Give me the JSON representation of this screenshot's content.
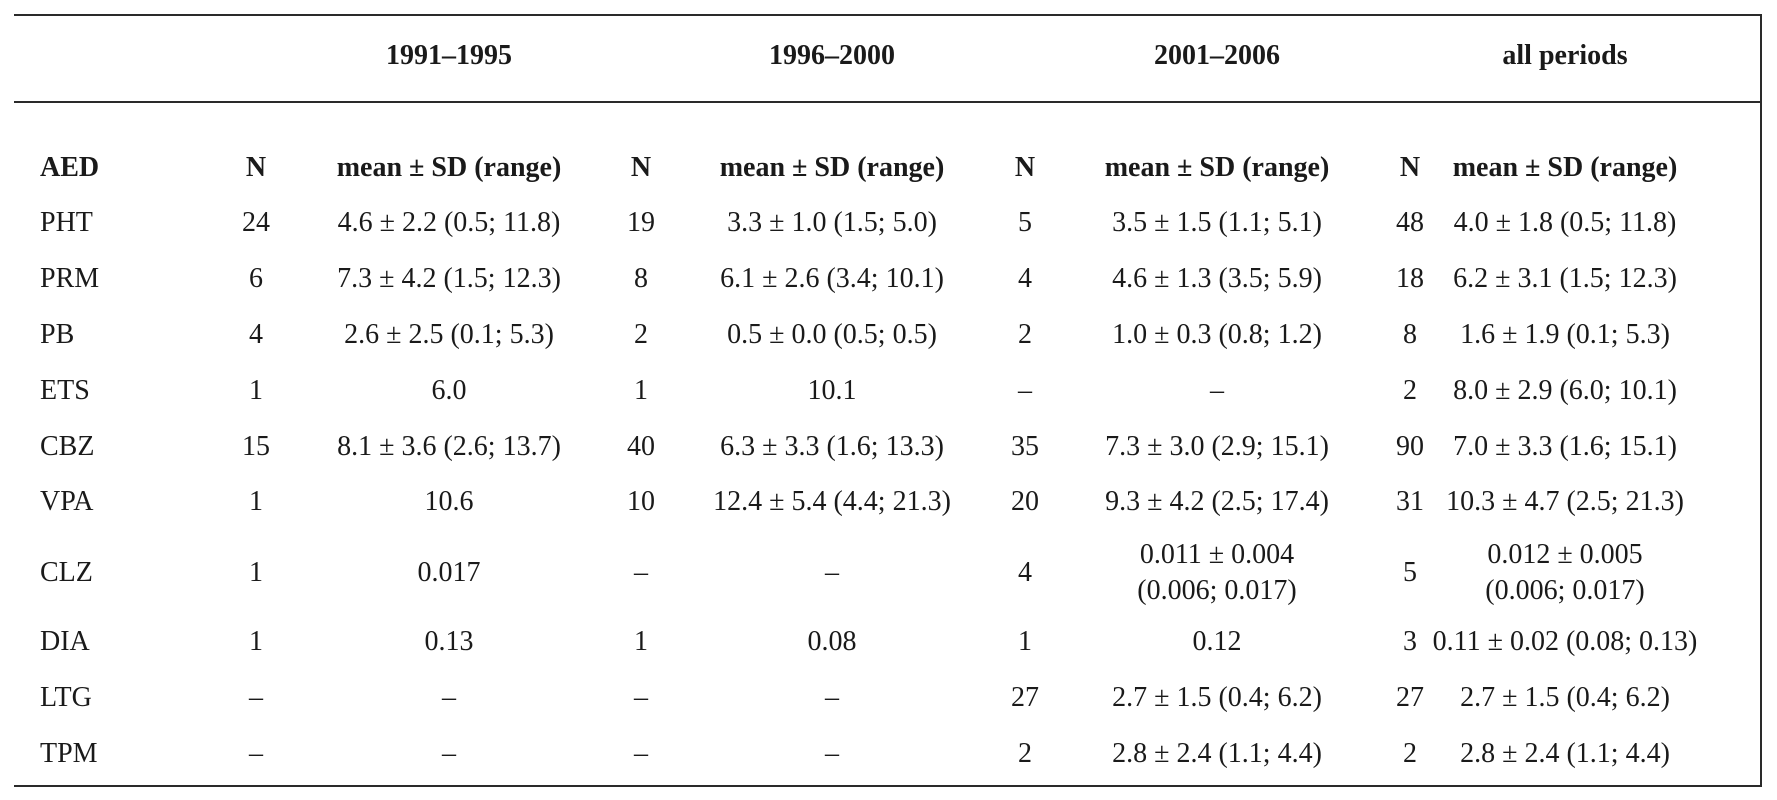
{
  "periods": [
    "1991–1995",
    "1996–2000",
    "2001–2006",
    "all periods"
  ],
  "header": {
    "aed": "AED",
    "n": "N",
    "mean": "mean ± SD (range)"
  },
  "rows": [
    {
      "aed": "PHT",
      "n1": "24",
      "m1": "4.6 ± 2.2 (0.5; 11.8)",
      "n2": "19",
      "m2": "3.3 ± 1.0 (1.5; 5.0)",
      "n3": "5",
      "m3": "3.5 ± 1.5 (1.1; 5.1)",
      "n4": "48",
      "m4": "4.0 ± 1.8 (0.5; 11.8)"
    },
    {
      "aed": "PRM",
      "n1": "6",
      "m1": "7.3 ± 4.2 (1.5; 12.3)",
      "n2": "8",
      "m2": "6.1 ± 2.6 (3.4; 10.1)",
      "n3": "4",
      "m3": "4.6 ± 1.3 (3.5; 5.9)",
      "n4": "18",
      "m4": "6.2 ± 3.1 (1.5; 12.3)"
    },
    {
      "aed": "PB",
      "n1": "4",
      "m1": "2.6 ± 2.5 (0.1; 5.3)",
      "n2": "2",
      "m2": "0.5 ± 0.0 (0.5; 0.5)",
      "n3": "2",
      "m3": "1.0 ± 0.3 (0.8; 1.2)",
      "n4": "8",
      "m4": "1.6 ± 1.9 (0.1; 5.3)"
    },
    {
      "aed": "ETS",
      "n1": "1",
      "m1": "6.0",
      "n2": "1",
      "m2": "10.1",
      "n3": "–",
      "m3": "–",
      "n4": "2",
      "m4": "8.0 ± 2.9 (6.0; 10.1)"
    },
    {
      "aed": "CBZ",
      "n1": "15",
      "m1": "8.1 ± 3.6 (2.6; 13.7)",
      "n2": "40",
      "m2": "6.3 ± 3.3 (1.6; 13.3)",
      "n3": "35",
      "m3": "7.3 ± 3.0 (2.9; 15.1)",
      "n4": "90",
      "m4": "7.0 ± 3.3 (1.6; 15.1)"
    },
    {
      "aed": "VPA",
      "n1": "1",
      "m1": "10.6",
      "n2": "10",
      "m2": "12.4 ± 5.4 (4.4; 21.3)",
      "n3": "20",
      "m3": "9.3 ± 4.2 (2.5; 17.4)",
      "n4": "31",
      "m4": "10.3 ± 4.7 (2.5; 21.3)"
    },
    {
      "aed": "CLZ",
      "n1": "1",
      "m1": "0.017",
      "n2": "–",
      "m2": "–",
      "n3": "4",
      "m3a": "0.011 ± 0.004",
      "m3b": "(0.006; 0.017)",
      "n4": "5",
      "m4a": "0.012 ± 0.005",
      "m4b": "(0.006; 0.017)"
    },
    {
      "aed": "DIA",
      "n1": "1",
      "m1": "0.13",
      "n2": "1",
      "m2": "0.08",
      "n3": "1",
      "m3": "0.12",
      "n4": "3",
      "m4": "0.11 ± 0.02 (0.08; 0.13)"
    },
    {
      "aed": "LTG",
      "n1": "–",
      "m1": "–",
      "n2": "–",
      "m2": "–",
      "n3": "27",
      "m3": "2.7 ± 1.5 (0.4; 6.2)",
      "n4": "27",
      "m4": "2.7 ± 1.5 (0.4; 6.2)"
    },
    {
      "aed": "TPM",
      "n1": "–",
      "m1": "–",
      "n2": "–",
      "m2": "–",
      "n3": "2",
      "m3": "2.8 ± 2.4 (1.1; 4.4)",
      "n4": "2",
      "m4": "2.8 ± 2.4 (1.1; 4.4)"
    }
  ]
}
